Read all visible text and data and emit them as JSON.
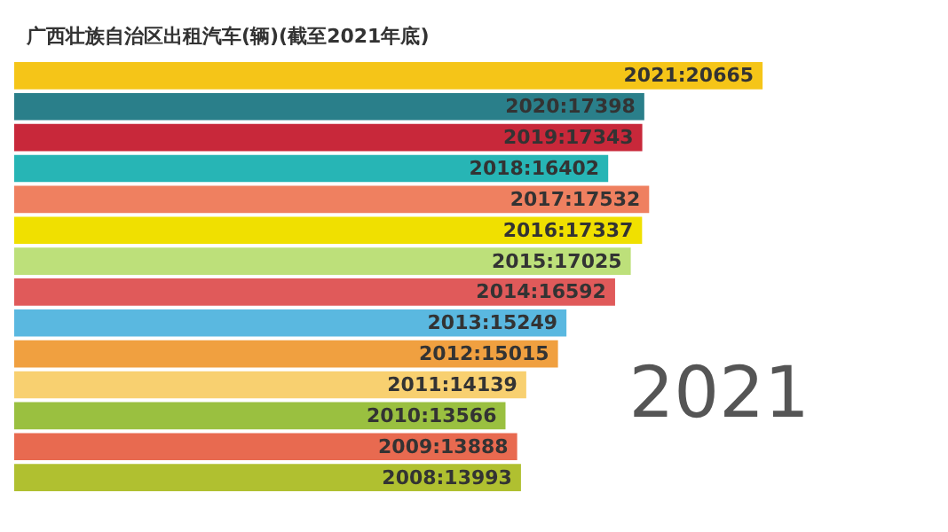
{
  "chart_data": {
    "type": "bar",
    "orientation": "horizontal",
    "title": "广西壮族自治区出租汽车(辆)(截至2021年底)",
    "categories": [
      null,
      null,
      null,
      null,
      null,
      null,
      null,
      null,
      null,
      null,
      null,
      null,
      null,
      null
    ],
    "value_labels": [
      "2021:20665",
      "2020:17398",
      "2019:17343",
      "2018:16402",
      "2017:17532",
      "2016:17337",
      "2015:17025",
      "2014:16592",
      "2013:15249",
      "2012:15015",
      "2011:14139",
      "2010:13566",
      "2009:13888",
      "2008:13993"
    ],
    "values": [
      20665,
      17398,
      17343,
      16402,
      17532,
      17337,
      17025,
      16592,
      15249,
      15015,
      14139,
      13566,
      13888,
      13993
    ],
    "colors": [
      "#f5c518",
      "#2a7f8a",
      "#c8283a",
      "#27b5b5",
      "#ef8060",
      "#f0e000",
      "#bde07a",
      "#e05a5a",
      "#5ab8e0",
      "#f0a040",
      "#f8d070",
      "#9ac040",
      "#e86a50",
      "#b0c030"
    ],
    "tick_labels": false,
    "grid": false,
    "annotations": [
      "2021"
    ]
  }
}
